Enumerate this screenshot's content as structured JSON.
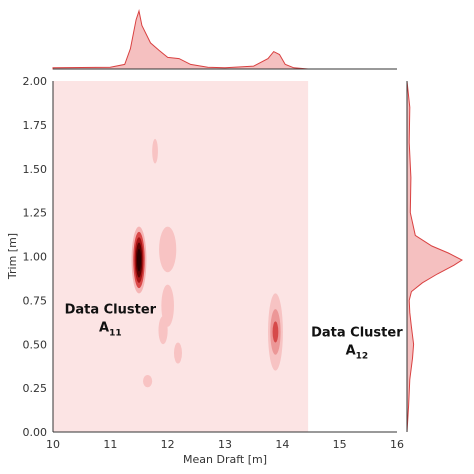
{
  "chart_data": {
    "type": "joint-kde",
    "xlabel": "Mean Draft [m]",
    "ylabel": "Trim [m]",
    "xlim": [
      10,
      16
    ],
    "ylim": [
      0,
      2
    ],
    "xticks": [
      "10",
      "11",
      "12",
      "13",
      "14",
      "15",
      "16"
    ],
    "yticks": [
      "0.00",
      "0.25",
      "0.50",
      "0.75",
      "1.00",
      "1.25",
      "1.50",
      "1.75",
      "2.00"
    ],
    "shaded_region": {
      "x": [
        10,
        14.45
      ],
      "y": [
        0,
        2
      ]
    },
    "density_peaks": [
      {
        "x": 11.5,
        "y": 0.98,
        "levels": [
          {
            "rx": 0.13,
            "ry": 0.19,
            "color": "#f5b5b5"
          },
          {
            "rx": 0.1,
            "ry": 0.16,
            "color": "#d94848"
          },
          {
            "rx": 0.075,
            "ry": 0.13,
            "color": "#a51414"
          },
          {
            "rx": 0.055,
            "ry": 0.1,
            "color": "#5a0000"
          },
          {
            "rx": 0.035,
            "ry": 0.065,
            "color": "#2a0000"
          }
        ]
      },
      {
        "x": 13.88,
        "y": 0.57,
        "levels": [
          {
            "rx": 0.13,
            "ry": 0.22,
            "color": "#f7c3c3"
          },
          {
            "rx": 0.09,
            "ry": 0.13,
            "color": "#ec9797"
          },
          {
            "rx": 0.05,
            "ry": 0.06,
            "color": "#d64a4a"
          }
        ]
      },
      {
        "x": 11.78,
        "y": 1.6,
        "levels": [
          {
            "rx": 0.05,
            "ry": 0.07,
            "color": "#f8c3c3"
          }
        ]
      },
      {
        "x": 12.0,
        "y": 1.04,
        "levels": [
          {
            "rx": 0.15,
            "ry": 0.13,
            "color": "#f8c3c3"
          }
        ]
      },
      {
        "x": 12.0,
        "y": 0.72,
        "levels": [
          {
            "rx": 0.11,
            "ry": 0.12,
            "color": "#f8c3c3"
          }
        ]
      },
      {
        "x": 11.92,
        "y": 0.58,
        "levels": [
          {
            "rx": 0.08,
            "ry": 0.08,
            "color": "#f8c3c3"
          }
        ]
      },
      {
        "x": 12.18,
        "y": 0.45,
        "levels": [
          {
            "rx": 0.07,
            "ry": 0.06,
            "color": "#f8c3c3"
          }
        ]
      },
      {
        "x": 11.65,
        "y": 0.29,
        "levels": [
          {
            "rx": 0.08,
            "ry": 0.035,
            "color": "#f8c3c3"
          }
        ]
      }
    ],
    "top_marginal": {
      "x": [
        10.0,
        11.0,
        11.25,
        11.35,
        11.45,
        11.5,
        11.55,
        11.7,
        11.85,
        12.0,
        12.2,
        12.4,
        12.7,
        13.0,
        13.5,
        13.75,
        13.85,
        13.95,
        14.05,
        14.2,
        14.45
      ],
      "density": [
        0.02,
        0.03,
        0.08,
        0.35,
        0.85,
        1.0,
        0.75,
        0.45,
        0.32,
        0.2,
        0.18,
        0.08,
        0.03,
        0.02,
        0.05,
        0.18,
        0.3,
        0.25,
        0.08,
        0.02,
        0.0
      ]
    },
    "right_marginal": {
      "y": [
        0.0,
        0.15,
        0.3,
        0.42,
        0.5,
        0.55,
        0.6,
        0.68,
        0.75,
        0.8,
        0.85,
        0.9,
        0.95,
        0.98,
        1.02,
        1.06,
        1.12,
        1.25,
        1.45,
        1.65,
        1.85,
        2.0
      ],
      "density": [
        0.0,
        0.03,
        0.05,
        0.1,
        0.12,
        0.1,
        0.08,
        0.05,
        0.04,
        0.08,
        0.28,
        0.55,
        0.85,
        1.0,
        0.75,
        0.45,
        0.15,
        0.06,
        0.07,
        0.04,
        0.05,
        0.0
      ]
    },
    "colors": {
      "region": "#fce4e4",
      "marginal_fill": "#f5c0c0",
      "marginal_line": "#d94141",
      "axis": "#333333"
    }
  },
  "annotations": [
    {
      "lines": [
        "Data Cluster",
        "A"
      ],
      "subscript": "11",
      "x": 11.0,
      "y": 0.63
    },
    {
      "lines": [
        "Data Cluster",
        "A"
      ],
      "subscript": "12",
      "x": 15.3,
      "y": 0.5
    }
  ]
}
